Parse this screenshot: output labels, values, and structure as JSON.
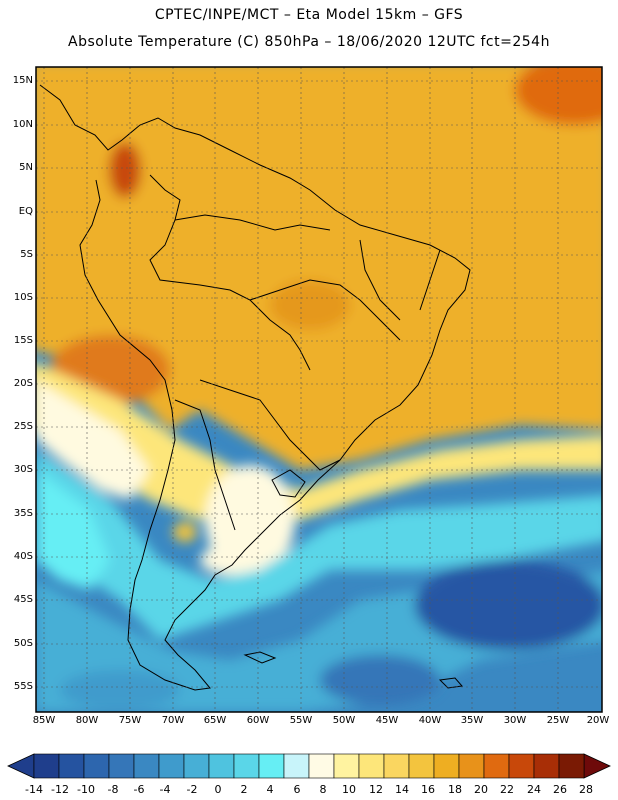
{
  "header": {
    "line1": "CPTEC/INPE/MCT –  Eta Model 15km – GFS",
    "line2": "Absolute Temperature (C) 850hPa – 18/06/2020 12UTC fct=254h"
  },
  "map": {
    "lat_labels": [
      "15N",
      "10N",
      "5N",
      "EQ",
      "5S",
      "10S",
      "15S",
      "20S",
      "25S",
      "30S",
      "35S",
      "40S",
      "45S",
      "50S",
      "55S"
    ],
    "lon_labels": [
      "85W",
      "80W",
      "75W",
      "70W",
      "65W",
      "60W",
      "55W",
      "50W",
      "45W",
      "40W",
      "35W",
      "30W",
      "25W",
      "20W"
    ]
  },
  "colorbar": {
    "labels": [
      "-14",
      "-12",
      "-10",
      "-8",
      "-6",
      "-4",
      "-2",
      "0",
      "2",
      "4",
      "6",
      "8",
      "10",
      "12",
      "14",
      "16",
      "18",
      "20",
      "22",
      "24",
      "26",
      "28"
    ],
    "colors": [
      "#1f3e8c",
      "#2553a0",
      "#2d66ae",
      "#3576b8",
      "#3a88c2",
      "#3f9bcc",
      "#47afd6",
      "#4fc3df",
      "#5ad6e8",
      "#66eef4",
      "#c8f4fa",
      "#fffbe5",
      "#fff3a0",
      "#fde67a",
      "#fad660",
      "#f3c43e",
      "#eeae22",
      "#e8921a",
      "#e06a10",
      "#c8480a",
      "#a82e06",
      "#7a1a04"
    ]
  },
  "colors": {
    "warm": "#eeb02a",
    "hot": "#e07a1a",
    "pale": "#fffae0",
    "cyan": "#5ad6e8",
    "blue": "#3a88c2",
    "deep": "#2556a4"
  }
}
